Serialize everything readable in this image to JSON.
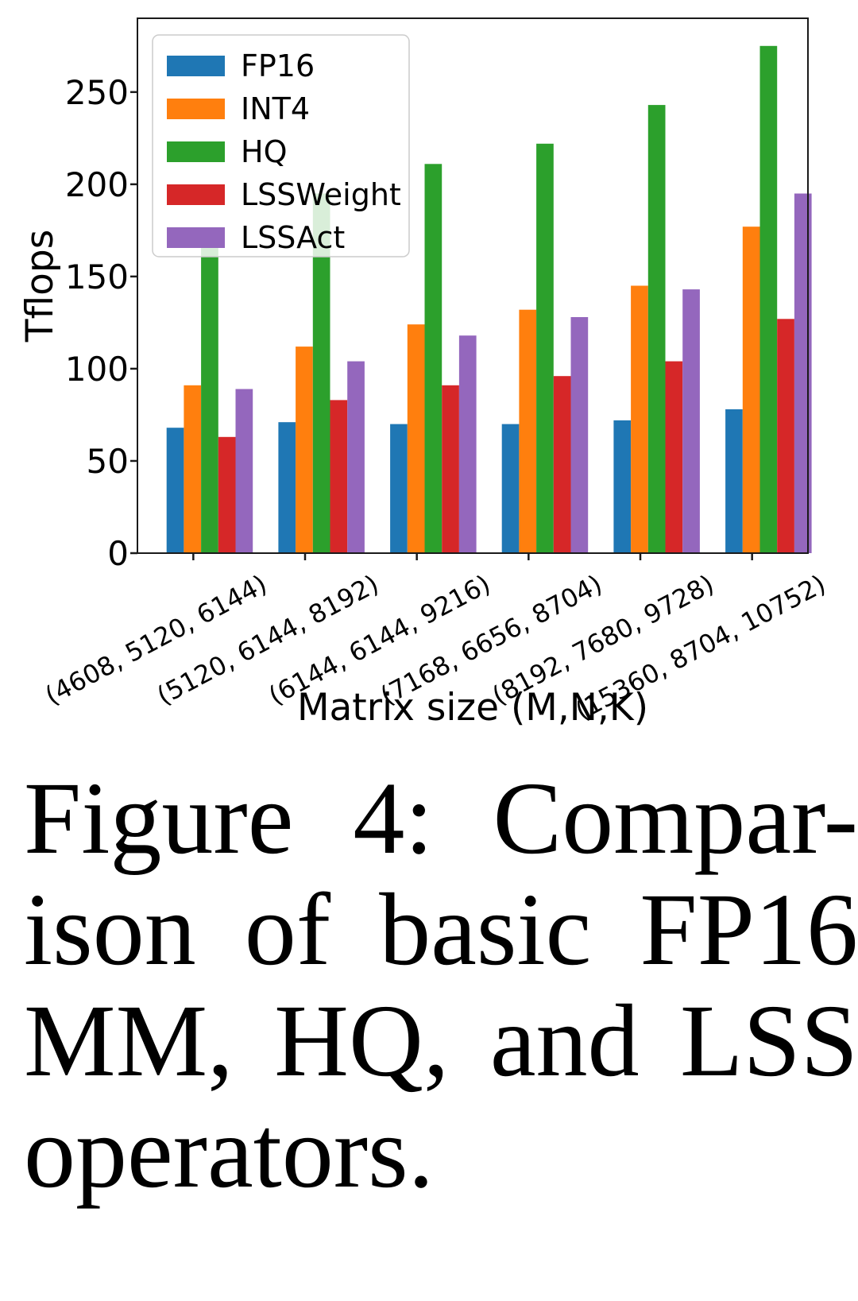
{
  "figure": {
    "caption_lines": [
      "Figure 4: Compar-",
      "ison of basic FP16",
      "MM, HQ, and LSS",
      "operators."
    ]
  },
  "chart_data": {
    "type": "bar",
    "title": "",
    "xlabel": "Matrix size (M,N,K)",
    "ylabel": "Tflops",
    "categories": [
      "(4608, 5120, 6144)",
      "(5120, 6144, 8192)",
      "(6144, 6144, 9216)",
      "(7168, 6656, 8704)",
      "(8192, 7680, 9728)",
      "(15360, 8704, 10752)"
    ],
    "series": [
      {
        "name": "FP16",
        "color": "#1f77b4",
        "values": [
          68,
          71,
          70,
          70,
          72,
          78
        ]
      },
      {
        "name": "INT4",
        "color": "#ff7f0e",
        "values": [
          91,
          112,
          124,
          132,
          145,
          177
        ]
      },
      {
        "name": "HQ",
        "color": "#2ca02c",
        "values": [
          168,
          195,
          211,
          222,
          243,
          275
        ]
      },
      {
        "name": "LSSWeight",
        "color": "#d62728",
        "values": [
          63,
          83,
          91,
          96,
          104,
          127
        ]
      },
      {
        "name": "LSSAct",
        "color": "#9467bd",
        "values": [
          89,
          104,
          118,
          128,
          143,
          195
        ]
      }
    ],
    "ylim": [
      0,
      290
    ],
    "yticks": [
      0,
      50,
      100,
      150,
      200,
      250
    ],
    "x_tick_rotation_deg": 28,
    "grid": false,
    "legend_position": "upper left",
    "legend_bg_color": "#ffffff",
    "legend_border_color": "#cccccc"
  }
}
